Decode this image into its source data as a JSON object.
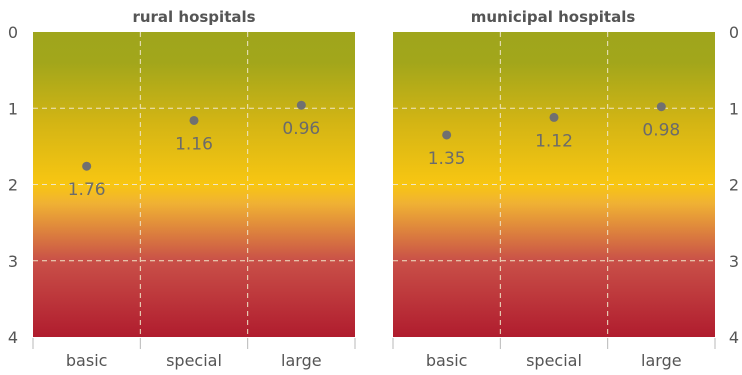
{
  "chart_data": [
    {
      "type": "scatter",
      "title": "rural hospitals",
      "categories": [
        "basic",
        "special",
        "large"
      ],
      "values": [
        1.76,
        1.16,
        0.96
      ],
      "data_labels": [
        "1.76",
        "1.16",
        "0.96"
      ],
      "ylim": [
        0,
        4
      ],
      "y_inverted": true,
      "yticks": [
        "0",
        "1",
        "2",
        "3",
        "4"
      ],
      "grid": true,
      "ytick_side": "left"
    },
    {
      "type": "scatter",
      "title": "municipal hospitals",
      "categories": [
        "basic",
        "special",
        "large"
      ],
      "values": [
        1.35,
        1.12,
        0.98
      ],
      "data_labels": [
        "1.35",
        "1.12",
        "0.98"
      ],
      "ylim": [
        0,
        4
      ],
      "y_inverted": true,
      "yticks": [
        "0",
        "1",
        "2",
        "3",
        "4"
      ],
      "grid": true,
      "ytick_side": "right"
    }
  ],
  "colors": {
    "gradient_top": "#9fa51c",
    "gradient_yellow": "#f8c612",
    "gradient_bottom": "#b01c2e",
    "marker": "#707070",
    "grid": "#efe6c8",
    "text": "#555555"
  }
}
